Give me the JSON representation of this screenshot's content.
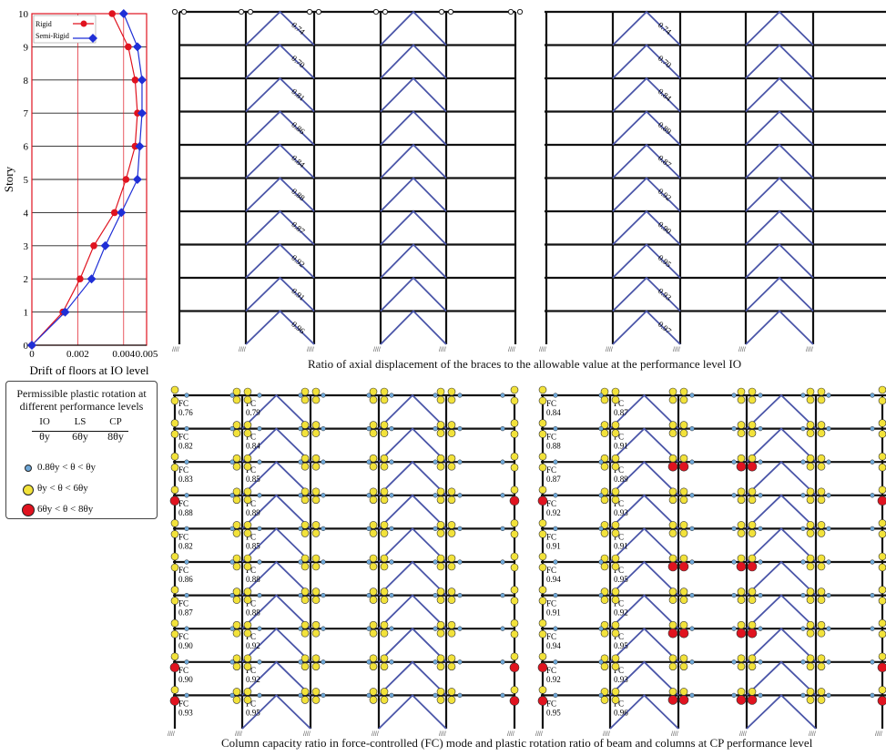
{
  "drift_chart": {
    "chart_data": {
      "type": "line",
      "xlabel": "Drift of floors at IO level",
      "ylabel": "Story",
      "xlim": [
        0,
        0.005
      ],
      "ylim": [
        0,
        10
      ],
      "x_ticks": [
        "0",
        "0.002",
        "0.004",
        "0.005"
      ],
      "y_ticks": [
        "0",
        "1",
        "2",
        "3",
        "4",
        "5",
        "6",
        "7",
        "8",
        "9",
        "10"
      ],
      "legend_position": "top-left",
      "series": [
        {
          "name": "Rigid",
          "color": "#e0131f",
          "marker": "circle",
          "points": [
            [
              0,
              0
            ],
            [
              0.00135,
              1
            ],
            [
              0.0021,
              2
            ],
            [
              0.0027,
              3
            ],
            [
              0.0036,
              4
            ],
            [
              0.0041,
              5
            ],
            [
              0.0045,
              6
            ],
            [
              0.0046,
              7
            ],
            [
              0.0045,
              8
            ],
            [
              0.0042,
              9
            ],
            [
              0.0035,
              10
            ]
          ]
        },
        {
          "name": "Semi-Rigid",
          "color": "#1f2fd6",
          "marker": "diamond",
          "points": [
            [
              0,
              0
            ],
            [
              0.00145,
              1
            ],
            [
              0.0026,
              2
            ],
            [
              0.0032,
              3
            ],
            [
              0.0039,
              4
            ],
            [
              0.0046,
              5
            ],
            [
              0.0047,
              6
            ],
            [
              0.0048,
              7
            ],
            [
              0.0048,
              8
            ],
            [
              0.0046,
              9
            ],
            [
              0.004,
              10
            ]
          ]
        }
      ],
      "reference_lines_x": [
        0.002,
        0.004
      ]
    }
  },
  "captions": {
    "top": "Ratio of axial displacement of the braces to the allowable value at the performance level IO",
    "bottom": "Column capacity ratio in force-controlled (FC) mode and plastic rotation ratio of beam and columns at CP performance level"
  },
  "frame_top_left": {
    "labels": [
      "0.74",
      "0.70",
      "0.81",
      "0.86",
      "0.84",
      "0.88",
      "0.87",
      "0.92",
      "0.91",
      "0.96"
    ]
  },
  "frame_top_right": {
    "labels": [
      "0.74",
      "0.70",
      "0.84",
      "0.89",
      "0.87",
      "0.92",
      "0.90",
      "0.95",
      "0.93",
      "0.97"
    ]
  },
  "frame_bottom_left": {
    "fc_label": "FC",
    "col1": [
      "0.76",
      "0.82",
      "0.83",
      "0.88",
      "0.82",
      "0.86",
      "0.87",
      "0.90",
      "0.90",
      "0.93"
    ],
    "col2": [
      "0.79",
      "0.84",
      "0.85",
      "0.89",
      "0.85",
      "0.88",
      "0.88",
      "0.92",
      "0.92",
      "0.95"
    ]
  },
  "frame_bottom_right": {
    "fc_label": "FC",
    "col1": [
      "0.84",
      "0.88",
      "0.87",
      "0.92",
      "0.91",
      "0.94",
      "0.91",
      "0.94",
      "0.92",
      "0.95"
    ],
    "col2": [
      "0.87",
      "0.91",
      "0.89",
      "0.93",
      "0.91",
      "0.95",
      "0.92",
      "0.95",
      "0.93",
      "0.96"
    ]
  },
  "legend": {
    "title_line1": "Permissible plastic rotation at",
    "title_line2": "different performance levels",
    "levels": [
      "IO",
      "LS",
      "CP"
    ],
    "limits": [
      "θy",
      "6θy",
      "8θy"
    ],
    "items": [
      {
        "label": "0.8θy < θ < θy",
        "color": "#6fa8d8"
      },
      {
        "label": "θy < θ < 6θy",
        "color": "#f2e23a"
      },
      {
        "label": "6θy < θ < 8θy",
        "color": "#e0131f"
      }
    ]
  },
  "colors": {
    "frame": "#111111",
    "brace": "#4a55a8",
    "hinge_blue": "#6fa8d8",
    "hinge_yellow": "#f2e23a",
    "hinge_red": "#e0131f",
    "ref_line": "#e0131f"
  }
}
